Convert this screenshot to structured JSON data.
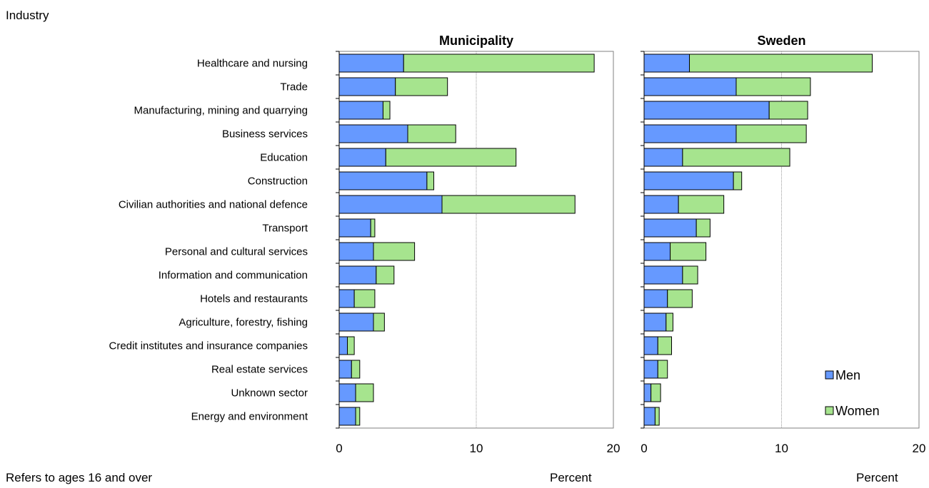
{
  "industry_label": "Industry",
  "footnote": "Refers to ages 16 and over",
  "x_unit": "Percent",
  "colors": {
    "men": "#6699ff",
    "women": "#a6e48e"
  },
  "chart_data": [
    {
      "type": "bar",
      "stacked": true,
      "orientation": "horizontal",
      "title": "Municipality",
      "xlabel": "Percent",
      "xlim": [
        0,
        20
      ],
      "xticks": [
        0,
        10,
        20
      ],
      "categories": [
        "Healthcare and nursing",
        "Trade",
        "Manufacturing, mining and quarrying",
        "Business services",
        "Education",
        "Construction",
        "Civilian authorities and national defence",
        "Transport",
        "Personal and cultural services",
        "Information and communication",
        "Hotels and restaurants",
        "Agriculture, forestry, fishing",
        "Credit institutes and insurance companies",
        "Real estate services",
        "Unknown sector",
        "Energy and environment"
      ],
      "series": [
        {
          "name": "Men",
          "values": [
            4.7,
            4.1,
            3.2,
            5.0,
            3.4,
            6.4,
            7.5,
            2.3,
            2.5,
            2.7,
            1.1,
            2.5,
            0.6,
            0.9,
            1.2,
            1.2
          ]
        },
        {
          "name": "Women",
          "values": [
            13.9,
            3.8,
            0.5,
            3.5,
            9.5,
            0.5,
            9.7,
            0.3,
            3.0,
            1.3,
            1.5,
            0.8,
            0.5,
            0.6,
            1.3,
            0.3
          ]
        }
      ]
    },
    {
      "type": "bar",
      "stacked": true,
      "orientation": "horizontal",
      "title": "Sweden",
      "xlabel": "Percent",
      "xlim": [
        0,
        20
      ],
      "xticks": [
        0,
        10,
        20
      ],
      "legend": "bottom-right",
      "categories": [
        "Healthcare and nursing",
        "Trade",
        "Manufacturing, mining and quarrying",
        "Business services",
        "Education",
        "Construction",
        "Civilian authorities and national defence",
        "Transport",
        "Personal and cultural services",
        "Information and communication",
        "Hotels and restaurants",
        "Agriculture, forestry, fishing",
        "Credit institutes and insurance companies",
        "Real estate services",
        "Unknown sector",
        "Energy and environment"
      ],
      "series": [
        {
          "name": "Men",
          "values": [
            3.3,
            6.7,
            9.1,
            6.7,
            2.8,
            6.5,
            2.5,
            3.8,
            1.9,
            2.8,
            1.7,
            1.6,
            1.0,
            1.0,
            0.5,
            0.8
          ]
        },
        {
          "name": "Women",
          "values": [
            13.3,
            5.4,
            2.8,
            5.1,
            7.8,
            0.6,
            3.3,
            1.0,
            2.6,
            1.1,
            1.8,
            0.5,
            1.0,
            0.7,
            0.7,
            0.3
          ]
        }
      ]
    }
  ]
}
